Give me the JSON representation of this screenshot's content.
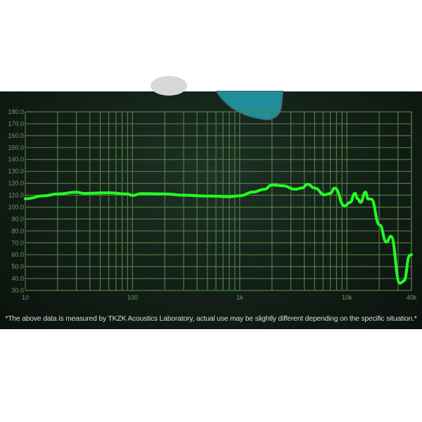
{
  "chart_data": {
    "type": "line",
    "title": "",
    "xlabel": "",
    "ylabel": "",
    "x_scale": "log",
    "xlim": [
      10,
      40000
    ],
    "ylim": [
      30,
      180
    ],
    "grid": true,
    "x_tick_labels": [
      "10",
      "100",
      "1k",
      "10k",
      "40k"
    ],
    "x_tick_values": [
      10,
      100,
      1000,
      10000,
      40000
    ],
    "y_tick_labels": [
      "180.0",
      "170.0",
      "160.0",
      "150.0",
      "140.0",
      "130.0",
      "120.0",
      "110.0",
      "100.0",
      "90.0",
      "80.0",
      "70.0",
      "60.0",
      "50.0",
      "40.0",
      "30.0"
    ],
    "y_tick_values": [
      180,
      170,
      160,
      150,
      140,
      130,
      120,
      110,
      100,
      90,
      80,
      70,
      60,
      50,
      40,
      30
    ],
    "series": [
      {
        "color": "#22ff22",
        "x": [
          10,
          15,
          20,
          30,
          35,
          60,
          90,
          100,
          120,
          200,
          300,
          500,
          800,
          1000,
          1330,
          1700,
          2000,
          2500,
          3300,
          3800,
          4300,
          5000,
          6200,
          7000,
          7700,
          9500,
          10700,
          11900,
          12600,
          13400,
          14900,
          15800,
          16800,
          20200,
          23400,
          25700,
          31300,
          34000,
          38600,
          40000
        ],
        "y": [
          107,
          109.5,
          111,
          112.5,
          111.5,
          112,
          111,
          109.8,
          111.3,
          111,
          110,
          109.3,
          108.8,
          109.5,
          112.6,
          115,
          118.6,
          118,
          115,
          116,
          119.2,
          116,
          110.3,
          111.5,
          116,
          101,
          104,
          111.5,
          107,
          104,
          112.6,
          106.8,
          106.8,
          85,
          70.7,
          75.5,
          36,
          38,
          59.5,
          60
        ]
      }
    ]
  },
  "caption": "*The above data is measured by TKZK Acoustics Laboratory, actual use may be slightly different depending on the specific situation.*",
  "colors": {
    "grid": "#4f7d43",
    "curve": "#22ff22",
    "background": "#142219"
  }
}
